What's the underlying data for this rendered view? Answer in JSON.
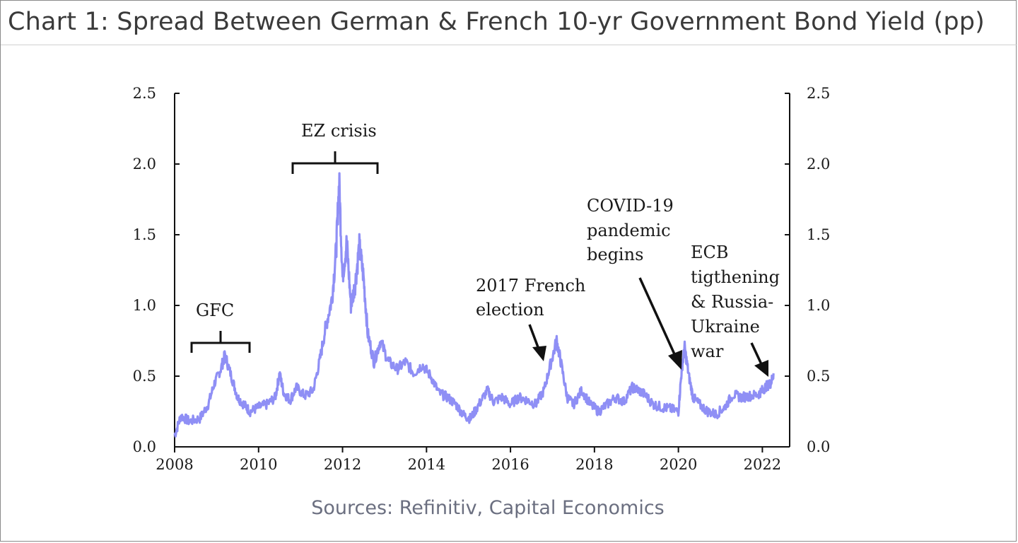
{
  "chart_data": {
    "type": "line",
    "title": "Chart 1: Spread Between German & French 10-yr Government Bond Yield (pp)",
    "source": "Sources: Refinitiv, Capital Economics",
    "xlabel": "",
    "ylabel": "",
    "xlim": [
      2008,
      2022.65
    ],
    "ylim": [
      0,
      2.5
    ],
    "x_ticks": [
      "2008",
      "2010",
      "2012",
      "2014",
      "2016",
      "2018",
      "2020",
      "2022"
    ],
    "y_ticks_left": [
      "0.0",
      "0.5",
      "1.0",
      "1.5",
      "2.0",
      "2.5"
    ],
    "y_ticks_right": [
      "0.0",
      "0.5",
      "1.0",
      "1.5",
      "2.0",
      "2.5"
    ],
    "grid": false,
    "series_color": "#8f8ff5",
    "series": [
      {
        "x": [
          2008.0,
          2008.15,
          2008.35,
          2008.6,
          2008.8,
          2008.95,
          2009.1,
          2009.2,
          2009.35,
          2009.5,
          2009.65,
          2009.8,
          2010.0,
          2010.2,
          2010.4,
          2010.5,
          2010.6,
          2010.75,
          2010.9,
          2011.1,
          2011.3,
          2011.45,
          2011.6,
          2011.75,
          2011.85,
          2011.92,
          2012.0,
          2012.1,
          2012.2,
          2012.3,
          2012.4,
          2012.5,
          2012.6,
          2012.75,
          2012.9,
          2013.1,
          2013.3,
          2013.5,
          2013.7,
          2013.9,
          2014.1,
          2014.3,
          2014.5,
          2014.7,
          2014.9,
          2015.05,
          2015.25,
          2015.45,
          2015.6,
          2015.8,
          2016.0,
          2016.2,
          2016.4,
          2016.6,
          2016.8,
          2016.95,
          2017.1,
          2017.2,
          2017.35,
          2017.5,
          2017.7,
          2017.9,
          2018.1,
          2018.3,
          2018.5,
          2018.7,
          2018.9,
          2019.05,
          2019.2,
          2019.4,
          2019.6,
          2019.8,
          2020.0,
          2020.08,
          2020.15,
          2020.25,
          2020.35,
          2020.5,
          2020.7,
          2020.9,
          2021.1,
          2021.3,
          2021.5,
          2021.7,
          2021.9,
          2022.0,
          2022.1,
          2022.2,
          2022.27
        ],
        "values": [
          0.08,
          0.22,
          0.18,
          0.2,
          0.3,
          0.45,
          0.55,
          0.65,
          0.5,
          0.35,
          0.3,
          0.25,
          0.28,
          0.3,
          0.35,
          0.52,
          0.38,
          0.33,
          0.42,
          0.36,
          0.4,
          0.6,
          0.85,
          1.05,
          1.4,
          1.88,
          1.2,
          1.45,
          1.0,
          1.15,
          1.42,
          1.2,
          0.8,
          0.6,
          0.75,
          0.6,
          0.55,
          0.6,
          0.52,
          0.58,
          0.5,
          0.38,
          0.35,
          0.3,
          0.22,
          0.2,
          0.3,
          0.4,
          0.32,
          0.35,
          0.3,
          0.35,
          0.33,
          0.3,
          0.4,
          0.58,
          0.75,
          0.6,
          0.35,
          0.3,
          0.4,
          0.3,
          0.25,
          0.3,
          0.35,
          0.32,
          0.42,
          0.4,
          0.37,
          0.3,
          0.28,
          0.27,
          0.25,
          0.55,
          0.7,
          0.5,
          0.35,
          0.3,
          0.25,
          0.23,
          0.28,
          0.37,
          0.35,
          0.36,
          0.37,
          0.4,
          0.43,
          0.45,
          0.52
        ]
      }
    ],
    "annotations": {
      "gfc": "GFC",
      "ez_crisis": "EZ crisis",
      "french_election_line1": "2017 French",
      "french_election_line2": "election",
      "covid_line1": "COVID-19",
      "covid_line2": "pandemic",
      "covid_line3": "begins",
      "ecb_line1": "ECB",
      "ecb_line2": "tigthening",
      "ecb_line3": "& Russia-",
      "ecb_line4": "Ukraine",
      "ecb_line5": "war"
    }
  }
}
